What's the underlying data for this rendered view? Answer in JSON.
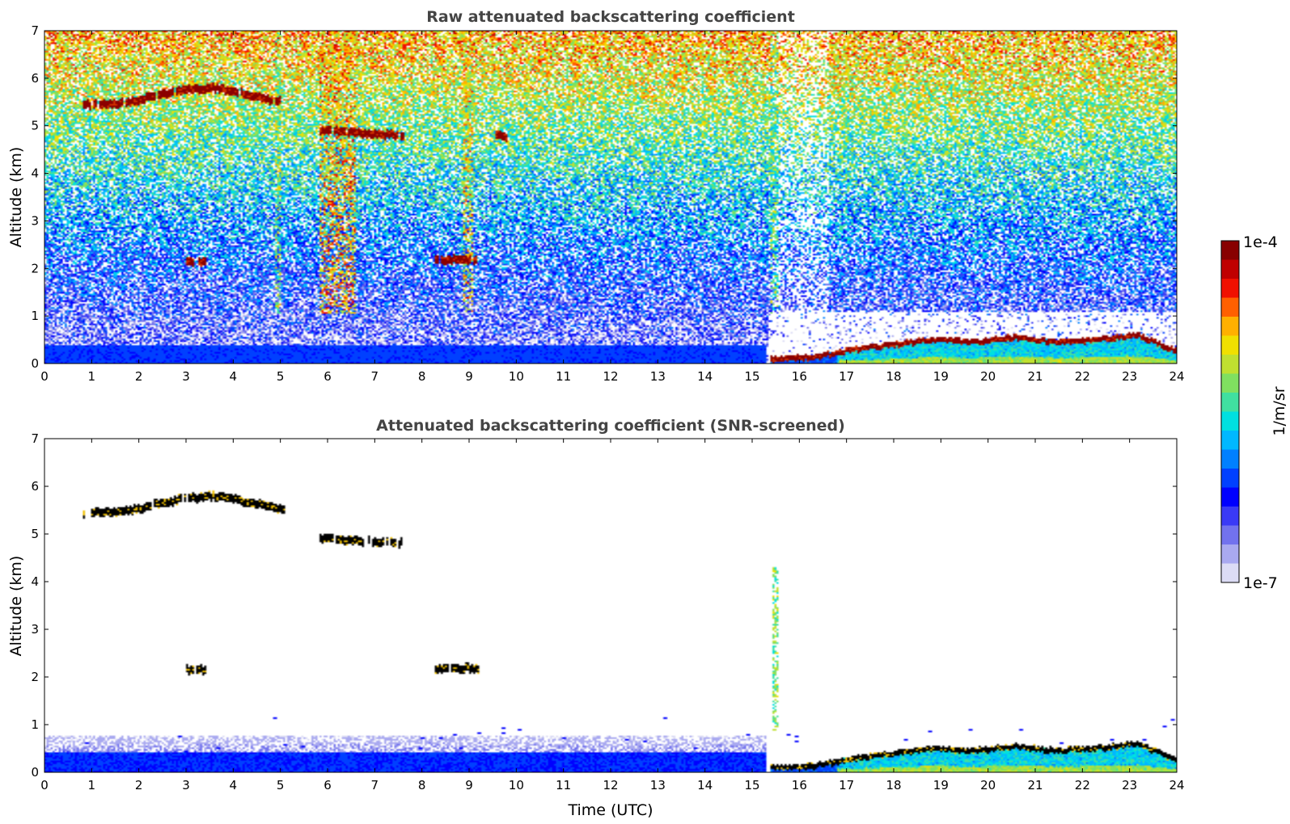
{
  "chart_data": [
    {
      "type": "heatmap",
      "title": "Raw attenuated backscattering coefficient",
      "xlabel": "",
      "ylabel": "Altitude (km)",
      "xlim": [
        0,
        24
      ],
      "ylim": [
        0,
        7
      ],
      "x_ticks": [
        "0",
        "1",
        "2",
        "3",
        "4",
        "5",
        "6",
        "7",
        "8",
        "9",
        "10",
        "11",
        "12",
        "13",
        "14",
        "15",
        "16",
        "17",
        "18",
        "19",
        "20",
        "21",
        "22",
        "23",
        "24"
      ],
      "y_ticks": [
        "0",
        "1",
        "2",
        "3",
        "4",
        "5",
        "6",
        "7"
      ],
      "features": [
        {
          "name": "cirrus layer",
          "t_start": 0.85,
          "t_end": 5.0,
          "alt_km": [
            5.45,
            5.45,
            5.6,
            5.75,
            5.8,
            5.65,
            5.5
          ],
          "level": "high"
        },
        {
          "name": "mid cloud",
          "t_start": 5.85,
          "t_end": 7.6,
          "alt_km": [
            4.9,
            4.85,
            4.8
          ],
          "level": "high"
        },
        {
          "name": "mid cloud fragment",
          "t_start": 9.6,
          "t_end": 9.8,
          "alt_km": [
            4.78
          ],
          "level": "high"
        },
        {
          "name": "low cloud",
          "t_start": 3.0,
          "t_end": 3.4,
          "alt_km": [
            2.15
          ],
          "level": "high"
        },
        {
          "name": "low cloud",
          "t_start": 8.3,
          "t_end": 9.2,
          "alt_km": [
            2.18
          ],
          "level": "high"
        },
        {
          "name": "boundary layer top",
          "t_start": 15.4,
          "t_end": 24.0,
          "alt_km": [
            0.1,
            0.12,
            0.3,
            0.4,
            0.5,
            0.45,
            0.55,
            0.45,
            0.5,
            0.6,
            0.25
          ],
          "level": "high"
        }
      ]
    },
    {
      "type": "heatmap",
      "title": "Attenuated backscattering coefficient (SNR-screened)",
      "xlabel": "Time (UTC)",
      "ylabel": "Altitude (km)",
      "xlim": [
        0,
        24
      ],
      "ylim": [
        0,
        7
      ],
      "x_ticks": [
        "0",
        "1",
        "2",
        "3",
        "4",
        "5",
        "6",
        "7",
        "8",
        "9",
        "10",
        "11",
        "12",
        "13",
        "14",
        "15",
        "16",
        "17",
        "18",
        "19",
        "20",
        "21",
        "22",
        "23",
        "24"
      ],
      "y_ticks": [
        "0",
        "1",
        "2",
        "3",
        "4",
        "5",
        "6",
        "7"
      ],
      "features": [
        {
          "name": "cirrus layer",
          "t_start": 0.85,
          "t_end": 5.1,
          "alt_km": [
            5.45,
            5.45,
            5.6,
            5.75,
            5.8,
            5.65,
            5.5
          ],
          "level": "saturated"
        },
        {
          "name": "mid cloud",
          "t_start": 5.85,
          "t_end": 7.6,
          "alt_km": [
            4.9,
            4.85,
            4.8
          ],
          "level": "saturated"
        },
        {
          "name": "low cloud",
          "t_start": 3.0,
          "t_end": 3.4,
          "alt_km": [
            2.15
          ],
          "level": "saturated"
        },
        {
          "name": "low cloud",
          "t_start": 8.3,
          "t_end": 9.2,
          "alt_km": [
            2.18
          ],
          "level": "saturated"
        },
        {
          "name": "aerosol plume",
          "t_start": 15.45,
          "t_end": 15.55,
          "alt_km": [
            0.9,
            4.3
          ],
          "level": "medium"
        },
        {
          "name": "boundary layer top",
          "t_start": 15.4,
          "t_end": 24.0,
          "alt_km": [
            0.1,
            0.12,
            0.3,
            0.4,
            0.5,
            0.45,
            0.55,
            0.45,
            0.5,
            0.6,
            0.25
          ],
          "level": "saturated"
        }
      ]
    }
  ],
  "colorbar": {
    "label": "1/m/sr",
    "max_label": "1e-4",
    "min_label": "1e-7",
    "range": [
      1e-07,
      0.0001
    ],
    "scale": "log",
    "colors": [
      "#dcdcf5",
      "#a9a9f0",
      "#7272ee",
      "#3a3af6",
      "#0000ff",
      "#0040ff",
      "#0080ff",
      "#00b8ff",
      "#00e0e0",
      "#40e0a0",
      "#80e060",
      "#c0e030",
      "#f0e000",
      "#ffb000",
      "#ff6000",
      "#f01000",
      "#c00000",
      "#880000"
    ]
  }
}
